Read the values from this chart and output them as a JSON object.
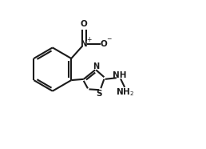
{
  "background_color": "#ffffff",
  "line_color": "#1a1a1a",
  "line_width": 1.5,
  "font_size": 7.5,
  "fig_width": 2.58,
  "fig_height": 1.86,
  "dpi": 100,
  "xlim": [
    0,
    10
  ],
  "ylim": [
    0,
    7.2
  ]
}
